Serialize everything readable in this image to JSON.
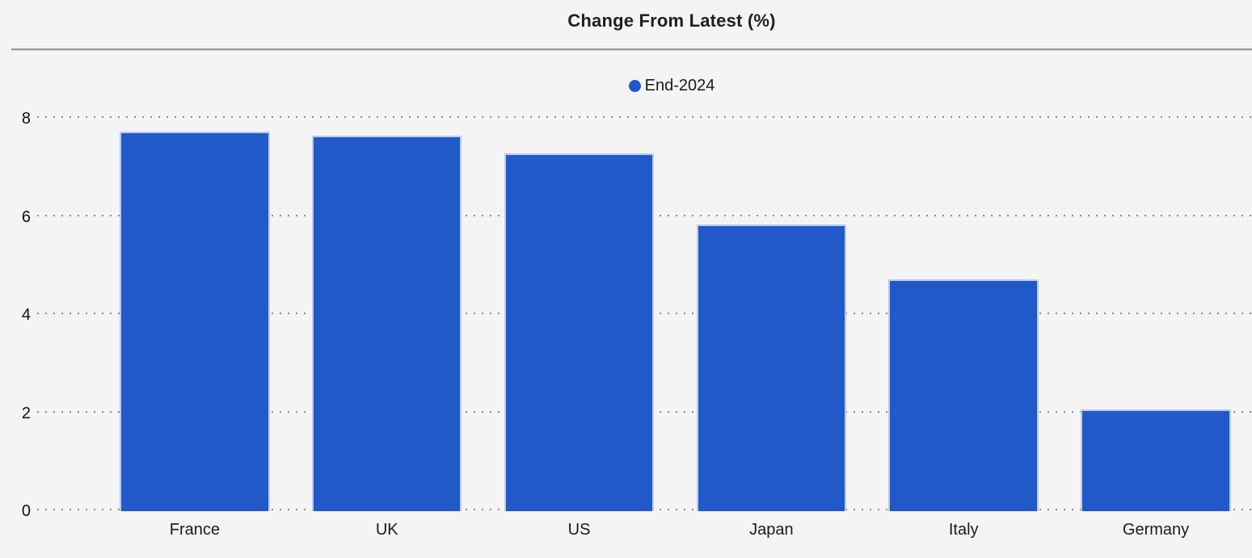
{
  "chart": {
    "title": "Change From Latest (%)",
    "legend_label": "End-2024"
  },
  "chart_data": {
    "type": "bar",
    "title": "Change From Latest (%)",
    "categories": [
      "France",
      "UK",
      "US",
      "Japan",
      "Italy",
      "Germany"
    ],
    "series": [
      {
        "name": "End-2024",
        "values": [
          7.73,
          7.65,
          7.3,
          5.84,
          4.72,
          2.07
        ]
      }
    ],
    "xlabel": "",
    "ylabel": "",
    "ylim": [
      0,
      8
    ],
    "yticks": [
      0,
      2,
      4,
      6,
      8
    ],
    "grid": "horizontal-dotted",
    "legend_position": "top-center",
    "colors": {
      "bar": "#2159c8",
      "bar_border": "#b9cbea",
      "background": "#f4f4f4",
      "grid": "#8a8a8a",
      "text": "#1a1a1a",
      "divider": "#9b9b9b"
    }
  }
}
